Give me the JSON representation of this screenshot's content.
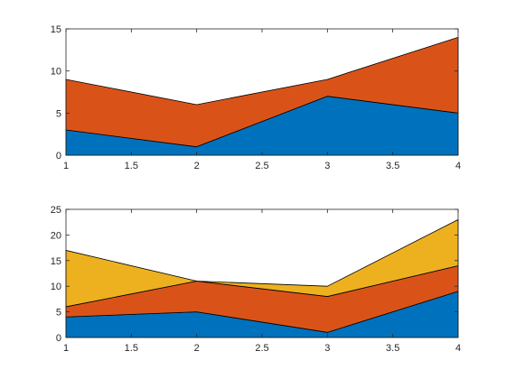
{
  "chart_data": [
    {
      "type": "area",
      "stacked": true,
      "x": [
        1,
        2,
        3,
        4
      ],
      "series": [
        {
          "values": [
            3,
            1,
            7,
            5
          ],
          "color": "#0072bd"
        },
        {
          "values": [
            6,
            5,
            2,
            9
          ],
          "color": "#d95319"
        }
      ],
      "xlim": [
        1,
        4
      ],
      "ylim": [
        0,
        15
      ],
      "xticks": [
        "1",
        "1.5",
        "2",
        "2.5",
        "3",
        "3.5",
        "4"
      ],
      "yticks": [
        "0",
        "5",
        "10",
        "15"
      ],
      "grid": false,
      "box": true
    },
    {
      "type": "area",
      "stacked": true,
      "x": [
        1,
        2,
        3,
        4
      ],
      "series": [
        {
          "values": [
            4,
            5,
            1,
            9
          ],
          "color": "#0072bd"
        },
        {
          "values": [
            2,
            6,
            7,
            5
          ],
          "color": "#d95319"
        },
        {
          "values": [
            11,
            0,
            2,
            9
          ],
          "color": "#edb120"
        }
      ],
      "xlim": [
        1,
        4
      ],
      "ylim": [
        0,
        25
      ],
      "xticks": [
        "1",
        "1.5",
        "2",
        "2.5",
        "3",
        "3.5",
        "4"
      ],
      "yticks": [
        "0",
        "5",
        "10",
        "15",
        "20",
        "25"
      ],
      "grid": false,
      "box": true
    }
  ]
}
